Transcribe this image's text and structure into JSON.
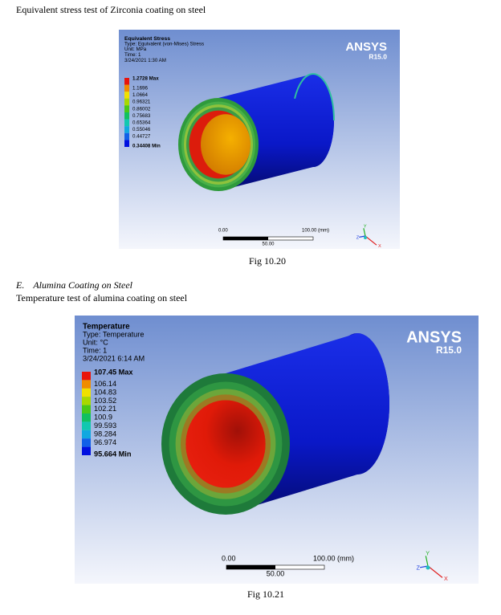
{
  "heading1": "Equivalent stress test of Zirconia coating on steel",
  "figures": [
    {
      "header": [
        "Equivalent Stress",
        "Type: Equivalent (von-Mises) Stress",
        "Unit: MPa",
        "Time: 1",
        "3/24/2021 1:30 AM"
      ],
      "legend": [
        "1.2728 Max",
        "1.1696",
        "1.0664",
        "0.96321",
        "0.86002",
        "0.75683",
        "0.65364",
        "0.55046",
        "0.44727",
        "0.34408 Min"
      ],
      "logo": "ANSYS",
      "version": "R15.0",
      "scale": {
        "start": "0.00",
        "end": "100.00 (mm)",
        "mid": "50.00"
      },
      "triad": [
        "X",
        "Y",
        "Z"
      ],
      "caption": "Fig 10.20"
    },
    {
      "header": [
        "Temperature",
        "Type: Temperature",
        "Unit: °C",
        "Time: 1",
        "3/24/2021 6:14 AM"
      ],
      "legend": [
        "107.45 Max",
        "106.14",
        "104.83",
        "103.52",
        "102.21",
        "100.9",
        "99.593",
        "98.284",
        "96.974",
        "95.664 Min"
      ],
      "logo": "ANSYS",
      "version": "R15.0",
      "scale": {
        "start": "0.00",
        "end": "100.00 (mm)",
        "mid": "50.00"
      },
      "triad": [
        "X",
        "Y",
        "Z"
      ],
      "caption": "Fig 10.21"
    }
  ],
  "section": {
    "label": "E.",
    "title": "Alumina Coating on Steel"
  },
  "heading2": "Temperature test of alumina coating on steel"
}
